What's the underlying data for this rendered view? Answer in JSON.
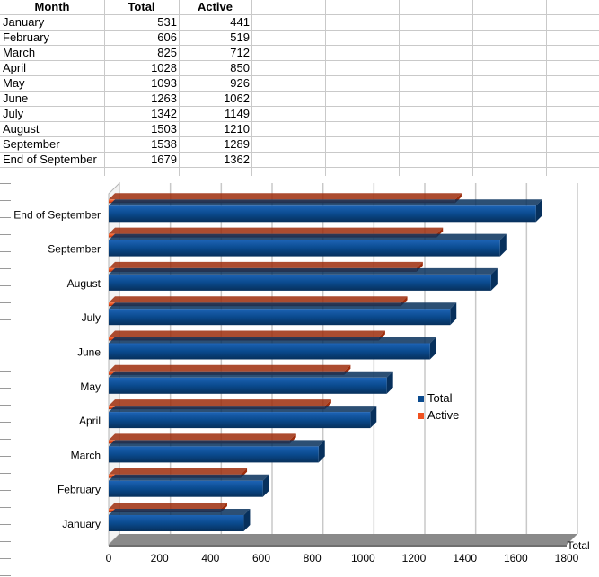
{
  "table": {
    "headers": [
      "Month",
      "Total",
      "Active"
    ],
    "rows": [
      {
        "month": "January",
        "total": "531",
        "active": "441"
      },
      {
        "month": "February",
        "total": "606",
        "active": "519"
      },
      {
        "month": "March",
        "total": "825",
        "active": "712"
      },
      {
        "month": "April",
        "total": "1028",
        "active": "850"
      },
      {
        "month": "May",
        "total": "1093",
        "active": "926"
      },
      {
        "month": "June",
        "total": "1263",
        "active": "1062"
      },
      {
        "month": "July",
        "total": "1342",
        "active": "1149"
      },
      {
        "month": "August",
        "total": "1503",
        "active": "1210"
      },
      {
        "month": "September",
        "total": "1538",
        "active": "1289"
      },
      {
        "month": "End of September",
        "total": "1679",
        "active": "1362"
      }
    ]
  },
  "colors": {
    "total": "#0a4a8e",
    "total_dark": "#07305c",
    "active": "#f0511f",
    "active_dark": "#9e2d0c",
    "grid": "#c8c8c8",
    "floor": "#8a8a8a"
  },
  "chart_data": {
    "type": "bar",
    "orientation": "horizontal",
    "style": "3d",
    "categories": [
      "January",
      "February",
      "March",
      "April",
      "May",
      "June",
      "July",
      "August",
      "September",
      "End of September"
    ],
    "series": [
      {
        "name": "Total",
        "values": [
          531,
          606,
          825,
          1028,
          1093,
          1263,
          1342,
          1503,
          1538,
          1679
        ]
      },
      {
        "name": "Active",
        "values": [
          441,
          519,
          712,
          850,
          926,
          1062,
          1149,
          1210,
          1289,
          1362
        ]
      }
    ],
    "xlim": [
      0,
      1800
    ],
    "xticks": [
      "0",
      "200",
      "400",
      "600",
      "800",
      "1000",
      "1200",
      "1400",
      "1600",
      "1800"
    ],
    "axis_title": "Total",
    "legend": {
      "position": "right",
      "entries": [
        "Total",
        "Active"
      ]
    },
    "grid": true
  }
}
